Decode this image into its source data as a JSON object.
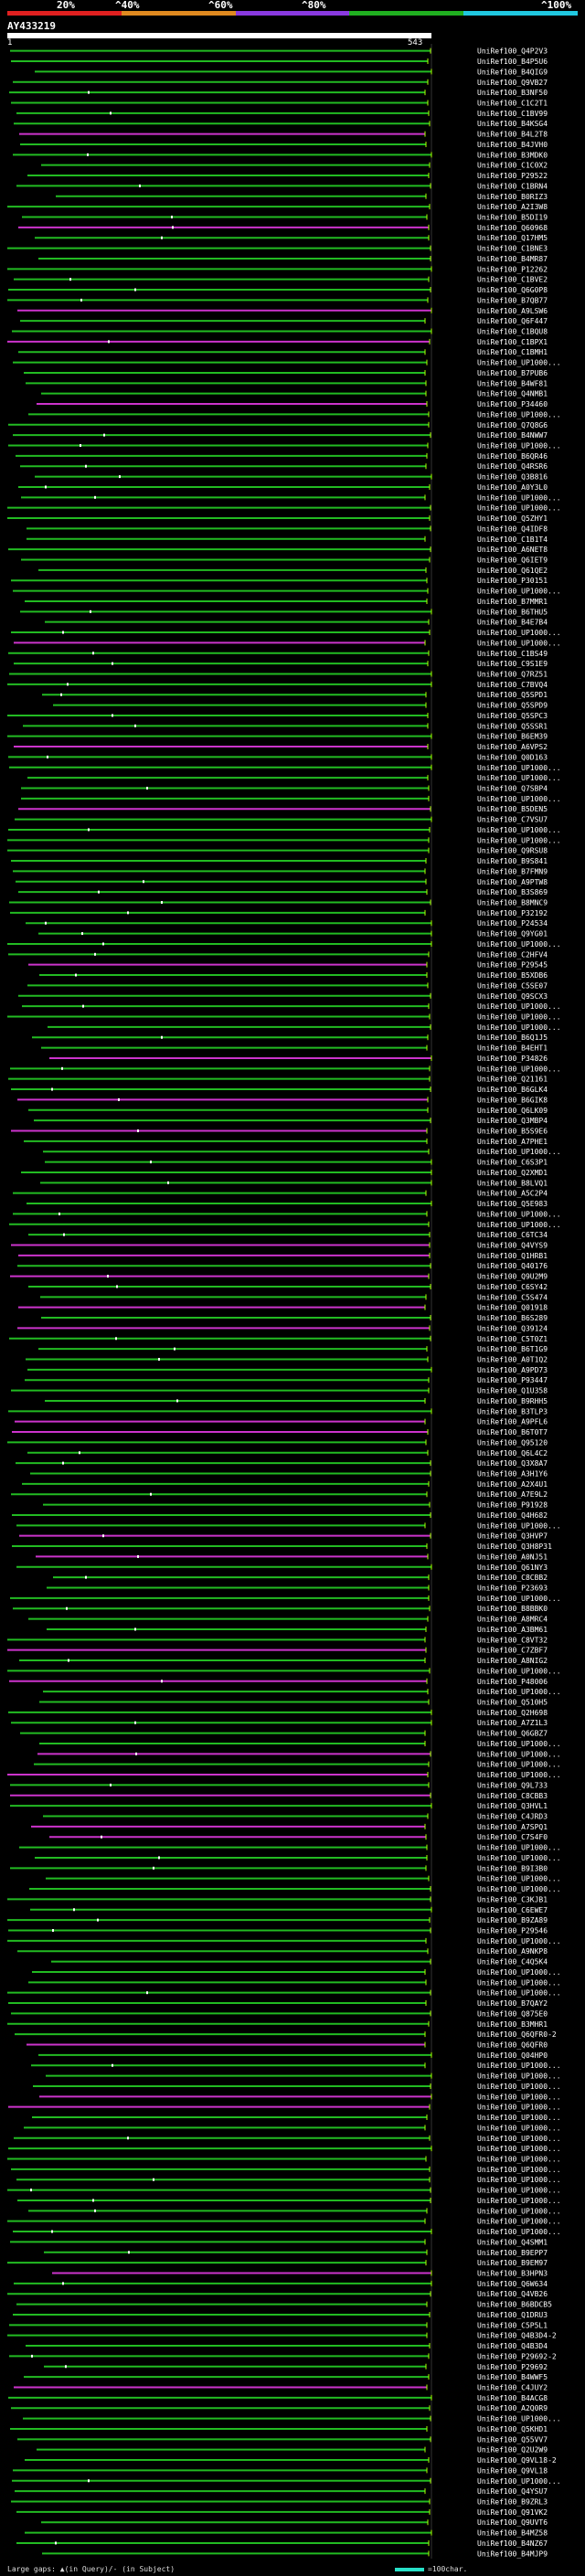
{
  "scale": {
    "labels": [
      "20%",
      "^40%",
      "^60%",
      "^80%",
      "^100%"
    ],
    "colors": [
      "#e02020",
      "#e08a20",
      "#8a3ae0",
      "#20b020",
      "#20c8e0"
    ]
  },
  "query": {
    "name": "AY433219",
    "start": "1",
    "end": "543"
  },
  "hit_colors": {
    "green": "#22bb22",
    "magenta": "#cc33cc",
    "tick": "#aaff00"
  },
  "hits": [
    "UniRef100_Q4P2V3",
    "UniRef100_B4P5U6",
    "UniRef100_B4QIG9",
    "UniRef100_Q9VB27",
    "UniRef100_B3NF50",
    "UniRef100_C1C2T1",
    "UniRef100_C1BV99",
    "UniRef100_B4KSG4",
    "UniRef100_B4L2T8",
    "UniRef100_B4JVH0",
    "UniRef100_B3MDK0",
    "UniRef100_C1C0X2",
    "UniRef100_P29522",
    "UniRef100_C1BRN4",
    "UniRef100_B0RIZ3",
    "UniRef100_A2I3W8",
    "UniRef100_B5DI19",
    "UniRef100_Q60968",
    "UniRef100_Q17HM5",
    "UniRef100_C1BNE3",
    "UniRef100_B4MR87",
    "UniRef100_P12262",
    "UniRef100_C1BVE2",
    "UniRef100_Q6G0P8",
    "UniRef100_B7QB77",
    "UniRef100_A9LSW6",
    "UniRef100_Q6F447",
    "UniRef100_C1BQU8",
    "UniRef100_C1BPX1",
    "UniRef100_C1BMH1",
    "UniRef100_UP1000...",
    "UniRef100_B7PUB6",
    "UniRef100_B4WF81",
    "UniRef100_Q4NMB1",
    "UniRef100_P34460",
    "UniRef100_UP1000...",
    "UniRef100_Q7Q8G6",
    "UniRef100_B4NWW7",
    "UniRef100_UP1000...",
    "UniRef100_B6QR46",
    "UniRef100_Q4RSR6",
    "UniRef100_Q3B816",
    "UniRef100_A0Y3L0",
    "UniRef100_UP1000...",
    "UniRef100_UP1000...",
    "UniRef100_Q5ZHY1",
    "UniRef100_Q4IDF8",
    "UniRef100_C1B1T4",
    "UniRef100_A6NET8",
    "UniRef100_Q6IET9",
    "UniRef100_Q61QE2",
    "UniRef100_P30151",
    "UniRef100_UP1000...",
    "UniRef100_B7MMR1",
    "UniRef100_B6THU5",
    "UniRef100_B4E7B4",
    "UniRef100_UP1000...",
    "UniRef100_UP1000...",
    "UniRef100_C1BS49",
    "UniRef100_C9S1E9",
    "UniRef100_Q7RZ51",
    "UniRef100_C7BVQ4",
    "UniRef100_Q5SPD1",
    "UniRef100_Q5SPD9",
    "UniRef100_Q5SPC3",
    "UniRef100_Q5SSR1",
    "UniRef100_B6EM39",
    "UniRef100_A6VPS2",
    "UniRef100_Q0D163",
    "UniRef100_UP1000...",
    "UniRef100_UP1000...",
    "UniRef100_Q7SBP4",
    "UniRef100_UP1000...",
    "UniRef100_B5DEN5",
    "UniRef100_C7VSU7",
    "UniRef100_UP1000...",
    "UniRef100_UP1000...",
    "UniRef100_Q9RSU8",
    "UniRef100_B9S841",
    "UniRef100_B7FMN9",
    "UniRef100_A9PTW8",
    "UniRef100_B3S869",
    "UniRef100_B8MNC9",
    "UniRef100_P32192",
    "UniRef100_P24534",
    "UniRef100_Q9YG01",
    "UniRef100_UP1000...",
    "UniRef100_C2HFV4",
    "UniRef100_P29545",
    "UniRef100_B5XDB6",
    "UniRef100_C5SE07",
    "UniRef100_Q9SCX3",
    "UniRef100_UP1000...",
    "UniRef100_UP1000...",
    "UniRef100_UP1000...",
    "UniRef100_B6Q1J5",
    "UniRef100_B4EHT1",
    "UniRef100_P34826",
    "UniRef100_UP1000...",
    "UniRef100_Q21161",
    "UniRef100_B6GLK4",
    "UniRef100_B6GIK8",
    "UniRef100_Q6LK09",
    "UniRef100_Q3MBP4",
    "UniRef100_B5S9E6",
    "UniRef100_A7PHE1",
    "UniRef100_UP1000...",
    "UniRef100_C6S3P1",
    "UniRef100_Q2XMD1",
    "UniRef100_B8LVQ1",
    "UniRef100_A5C2P4",
    "UniRef100_Q5E983",
    "UniRef100_UP1000...",
    "UniRef100_UP1000...",
    "UniRef100_C6TC34",
    "UniRef100_Q4VYS9",
    "UniRef100_Q1HRB1",
    "UniRef100_Q40176",
    "UniRef100_Q9U2M9",
    "UniRef100_C6SY42",
    "UniRef100_C5S474",
    "UniRef100_Q01918",
    "UniRef100_B6S289",
    "UniRef100_Q39124",
    "UniRef100_C5T0Z1",
    "UniRef100_B6T1G9",
    "UniRef100_A0T1Q2",
    "UniRef100_A9PD73",
    "UniRef100_P93447",
    "UniRef100_Q1U358",
    "UniRef100_B9RHH5",
    "UniRef100_B3TLP3",
    "UniRef100_A9PFL6",
    "UniRef100_B6T0T7",
    "UniRef100_Q95120",
    "UniRef100_Q6L4C2",
    "UniRef100_Q3X8A7",
    "UniRef100_A3H1Y6",
    "UniRef100_A2X4U1",
    "UniRef100_A7E9L2",
    "UniRef100_P91928",
    "UniRef100_Q4H682",
    "UniRef100_UP1000...",
    "UniRef100_Q3HVP7",
    "UniRef100_Q3H8P31",
    "UniRef100_A0NJ51",
    "UniRef100_Q61NY3",
    "UniRef100_C8CBB2",
    "UniRef100_P23693",
    "UniRef100_UP1000...",
    "UniRef100_B8BBK0",
    "UniRef100_A8MRC4",
    "UniRef100_A3BM61",
    "UniRef100_C8VT32",
    "UniRef100_C7ZBF7",
    "UniRef100_A8NIG2",
    "UniRef100_UP1000...",
    "UniRef100_P48006",
    "UniRef100_UP1000...",
    "UniRef100_Q510H5",
    "UniRef100_Q2H698",
    "UniRef100_A7Z1L3",
    "UniRef100_Q6GBZ7",
    "UniRef100_UP1000...",
    "UniRef100_UP1000...",
    "UniRef100_UP1000...",
    "UniRef100_UP1000...",
    "UniRef100_Q9L733",
    "UniRef100_C8CBB3",
    "UniRef100_Q3HVL1",
    "UniRef100_C4JRD3",
    "UniRef100_A7SPQ1",
    "UniRef100_C7S4F0",
    "UniRef100_UP1000...",
    "UniRef100_UP1000...",
    "UniRef100_B9I3B0",
    "UniRef100_UP1000...",
    "UniRef100_UP1000...",
    "UniRef100_C3KJB1",
    "UniRef100_C6EWE7",
    "UniRef100_B9ZA89",
    "UniRef100_P29546",
    "UniRef100_UP1000...",
    "UniRef100_A9NKP8",
    "UniRef100_C4Q5K4",
    "UniRef100_UP1000...",
    "UniRef100_UP1000...",
    "UniRef100_UP1000...",
    "UniRef100_B7QAY2",
    "UniRef100_Q875E0",
    "UniRef100_B3MHR1",
    "UniRef100_Q6QFR0-2",
    "UniRef100_Q6QFR0",
    "UniRef100_Q04HP0",
    "UniRef100_UP1000...",
    "UniRef100_UP1000...",
    "UniRef100_UP1000...",
    "UniRef100_UP1000...",
    "UniRef100_UP1000...",
    "UniRef100_UP1000...",
    "UniRef100_UP1000...",
    "UniRef100_UP1000...",
    "UniRef100_UP1000...",
    "UniRef100_UP1000...",
    "UniRef100_UP1000...",
    "UniRef100_UP1000...",
    "UniRef100_UP1000...",
    "UniRef100_UP1000...",
    "UniRef100_UP1000...",
    "UniRef100_UP1000...",
    "UniRef100_UP1000...",
    "UniRef100_Q4SMM1",
    "UniRef100_B9EPP7",
    "UniRef100_B9EM97",
    "UniRef100_B3HPN3",
    "UniRef100_Q6W634",
    "UniRef100_Q4VB26",
    "UniRef100_B6BDCB5",
    "UniRef100_Q1DRU3",
    "UniRef100_C5P5L1",
    "UniRef100_Q4B3D4-2",
    "UniRef100_Q4B3D4",
    "UniRef100_P29692-2",
    "UniRef100_P29692",
    "UniRef100_B4WWF5",
    "UniRef100_C4JUY2",
    "UniRef100_B4ACG8",
    "UniRef100_A2Q0R9",
    "UniRef100_UP1000...",
    "UniRef100_Q5KHD1",
    "UniRef100_Q55VV7",
    "UniRef100_Q2U2W9",
    "UniRef100_Q9VL18-2",
    "UniRef100_Q9VL18",
    "UniRef100_UP1000...",
    "UniRef100_Q4YSU7",
    "UniRef100_B9ZRL3",
    "UniRef100_Q91VK2",
    "UniRef100_Q9UVT6",
    "UniRef100_B4MZ58",
    "UniRef100_B4NZ67",
    "UniRef100_B4MJP9"
  ],
  "footer": {
    "text": "Large gaps: ▲(in Query)/- (in Subject)",
    "scale_label": "=100char."
  }
}
